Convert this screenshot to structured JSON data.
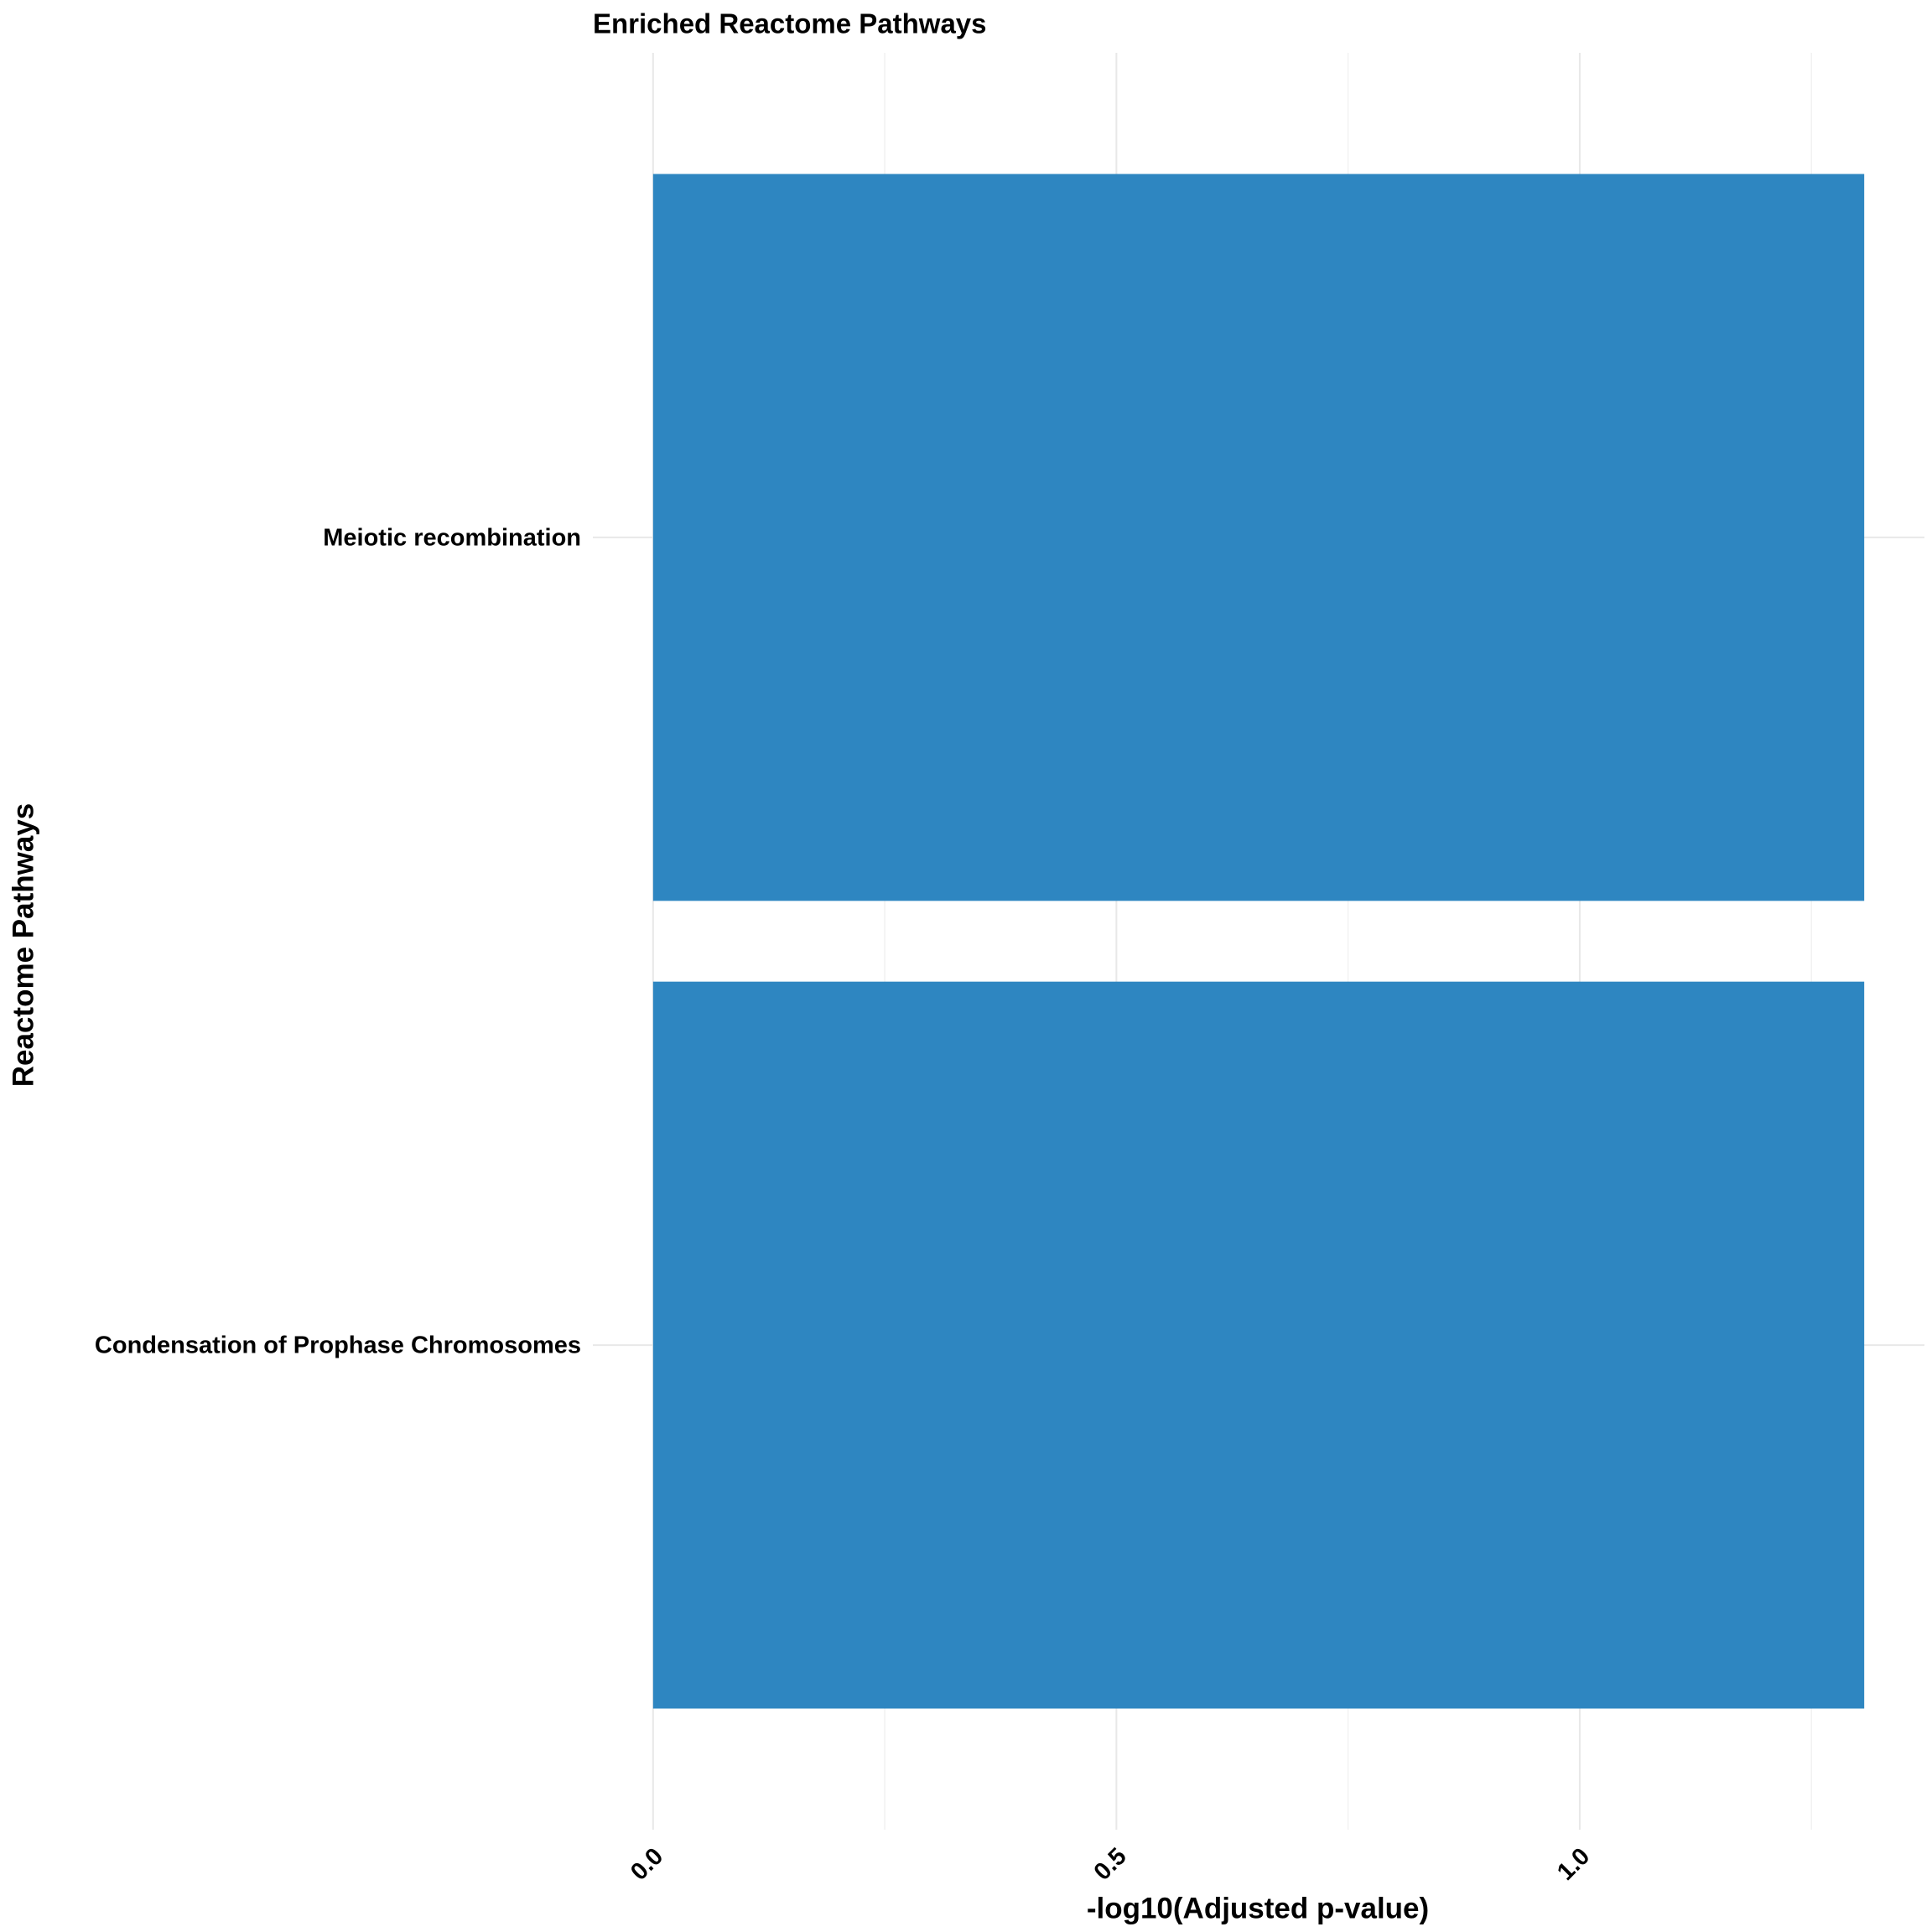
{
  "chart_data": {
    "type": "bar",
    "orientation": "horizontal",
    "title": "Enriched Reactome Pathways",
    "x_label": "-log10(Adjusted p-value)",
    "y_label": "Reactome Pathways",
    "categories": [
      "Meiotic recombination",
      "Condensation of Prophase Chromosomes"
    ],
    "values": [
      1.307,
      1.307
    ],
    "color": "#2e86c1",
    "xlim": [
      -0.065,
      1.372
    ],
    "xticks": [
      {
        "value": 0,
        "label": "0.0"
      },
      {
        "value": 0.5,
        "label": "0.5"
      },
      {
        "value": 1,
        "label": "1.0"
      }
    ],
    "minor_xticks": [
      0.25,
      0.75,
      1.25
    ],
    "grid": true
  }
}
